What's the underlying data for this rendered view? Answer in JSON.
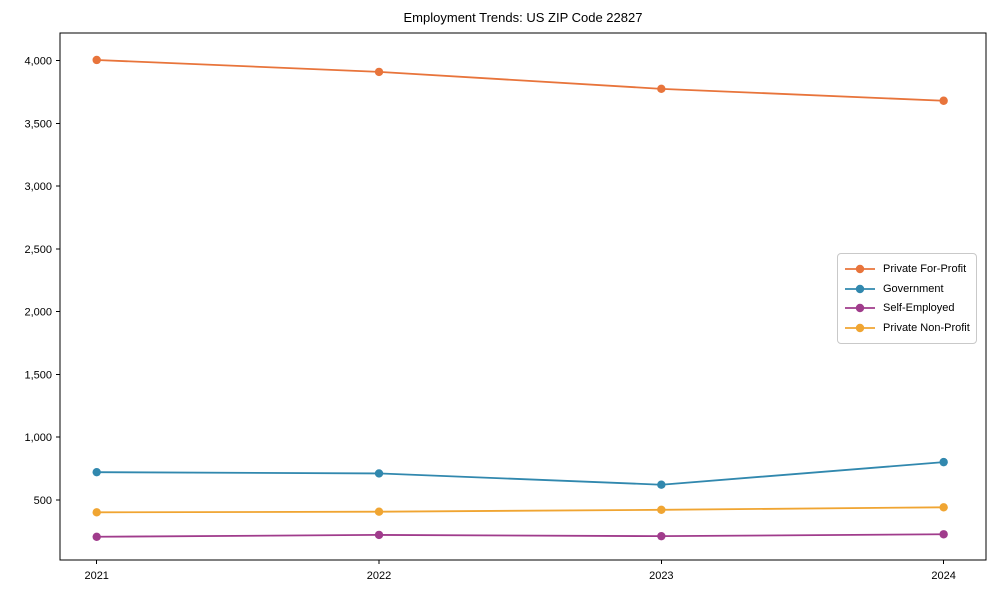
{
  "chart_data": {
    "type": "line",
    "title": "Employment Trends: US ZIP Code 22827",
    "x": [
      2021,
      2022,
      2023,
      2024
    ],
    "x_tick_labels": [
      "2021",
      "2022",
      "2023",
      "2024"
    ],
    "series": [
      {
        "name": "Private For-Profit",
        "color": "#E8743B",
        "values": [
          4005,
          3910,
          3775,
          3680
        ]
      },
      {
        "name": "Government",
        "color": "#3188AE",
        "values": [
          720,
          710,
          620,
          800
        ]
      },
      {
        "name": "Self-Employed",
        "color": "#A03C8C",
        "values": [
          205,
          220,
          210,
          225
        ]
      },
      {
        "name": "Private Non-Profit",
        "color": "#F0A532",
        "values": [
          400,
          405,
          420,
          440
        ]
      }
    ],
    "xlim": [
      2020.87,
      2024.15
    ],
    "ylim": [
      20,
      4220
    ],
    "yticks": [
      500,
      1000,
      1500,
      2000,
      2500,
      3000,
      3500,
      4000
    ],
    "ytick_labels": [
      "500",
      "1,000",
      "1,500",
      "2,000",
      "2,500",
      "3,000",
      "3,500",
      "4,000"
    ],
    "grid": false,
    "legend_position": "center-right",
    "background_color": "#ffffff",
    "axis_color": "#000000"
  }
}
